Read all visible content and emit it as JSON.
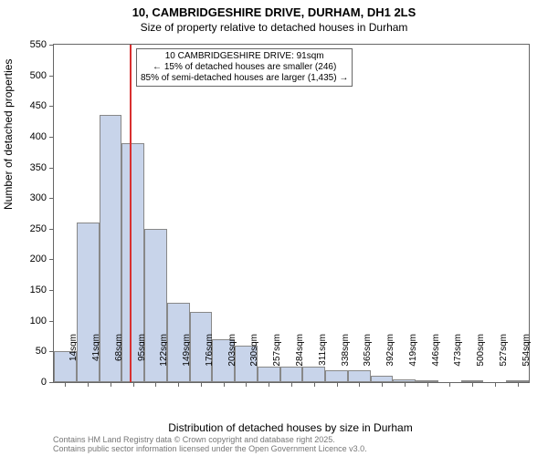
{
  "title": "10, CAMBRIDGESHIRE DRIVE, DURHAM, DH1 2LS",
  "subtitle": "Size of property relative to detached houses in Durham",
  "ylabel": "Number of detached properties",
  "xlabel": "Distribution of detached houses by size in Durham",
  "footnote1": "Contains HM Land Registry data © Crown copyright and database right 2025.",
  "footnote2": "Contains public sector information licensed under the Open Government Licence v3.0.",
  "chart": {
    "type": "bar",
    "background_color": "#ffffff",
    "bar_fill": "#c8d4ea",
    "bar_border": "#888888",
    "axis_color": "#666666",
    "ref_line_color": "#d83030",
    "ref_line_x": 91,
    "ylim": [
      0,
      550
    ],
    "ytick_step": 50,
    "x_start": 14,
    "x_step": 27,
    "x_count": 21,
    "x_unit": "sqm",
    "values": [
      50,
      260,
      435,
      390,
      250,
      130,
      115,
      70,
      60,
      25,
      25,
      25,
      20,
      20,
      10,
      5,
      2,
      0,
      2,
      0,
      2
    ],
    "bar_width": 1.0,
    "label_fontsize": 12,
    "tick_fontsize": 10
  },
  "annotation": {
    "line1": "10 CAMBRIDGESHIRE DRIVE: 91sqm",
    "line2": "← 15% of detached houses are smaller (246)",
    "line3": "85% of semi-detached houses are larger (1,435) →"
  }
}
